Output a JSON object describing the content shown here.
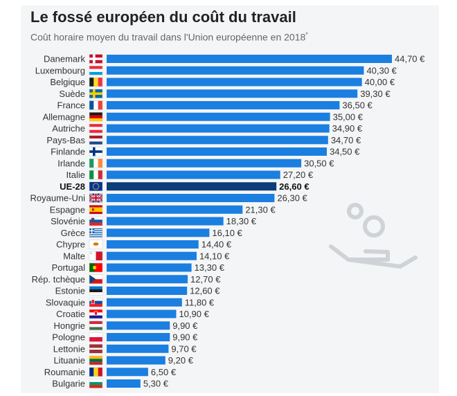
{
  "title": "Le fossé européen du coût du travail",
  "subtitle": "Coût horaire moyen du travail dans l'Union européenne en 2018",
  "subtitle_mark": "*",
  "colors": {
    "bar": "#1a7fe0",
    "bar_highlight": "#0d3c7a",
    "decor": "#cfd3d8"
  },
  "decor_icon": "hand-with-person-icon",
  "chart_data": {
    "type": "bar",
    "orientation": "horizontal",
    "title": "Le fossé européen du coût du travail",
    "subtitle": "Coût horaire moyen du travail dans l'Union européenne en 2018",
    "unit": "€",
    "xlim": [
      0,
      44.7
    ],
    "grid": false,
    "highlight": "UE-28",
    "categories": [
      "Danemark",
      "Luxembourg",
      "Belgique",
      "Suède",
      "France",
      "Allemagne",
      "Autriche",
      "Pays-Bas",
      "Finlande",
      "Irlande",
      "Italie",
      "UE-28",
      "Royaume-Uni",
      "Espagne",
      "Slovénie",
      "Grèce",
      "Chypre",
      "Malte",
      "Portugal",
      "Rép. tchèque",
      "Estonie",
      "Slovaquie",
      "Croatie",
      "Hongrie",
      "Pologne",
      "Lettonie",
      "Lituanie",
      "Roumanie",
      "Bulgarie"
    ],
    "values": [
      44.7,
      40.3,
      40.0,
      39.3,
      36.5,
      35.0,
      34.9,
      34.7,
      34.5,
      30.5,
      27.2,
      26.6,
      26.3,
      21.3,
      18.3,
      16.1,
      14.4,
      14.1,
      13.3,
      12.7,
      12.6,
      11.8,
      10.9,
      9.9,
      9.9,
      9.7,
      9.2,
      6.5,
      5.3
    ],
    "value_labels": [
      "44,70 €",
      "40,30 €",
      "40,00 €",
      "39,30 €",
      "36,50 €",
      "35,00 €",
      "34,90 €",
      "34,70 €",
      "34,50 €",
      "30,50 €",
      "27,20 €",
      "26,60 €",
      "26,30 €",
      "21,30 €",
      "18,30 €",
      "16,10 €",
      "14,40 €",
      "14,10 €",
      "13,30 €",
      "12,70 €",
      "12,60 €",
      "11,80 €",
      "10,90 €",
      "9,90 €",
      "9,90 €",
      "9,70 €",
      "9,20 €",
      "6,50 €",
      "5,30 €"
    ],
    "flags": [
      "denmark-flag-icon",
      "luxembourg-flag-icon",
      "belgium-flag-icon",
      "sweden-flag-icon",
      "france-flag-icon",
      "germany-flag-icon",
      "austria-flag-icon",
      "netherlands-flag-icon",
      "finland-flag-icon",
      "ireland-flag-icon",
      "italy-flag-icon",
      "eu-flag-icon",
      "uk-flag-icon",
      "spain-flag-icon",
      "slovenia-flag-icon",
      "greece-flag-icon",
      "cyprus-flag-icon",
      "malta-flag-icon",
      "portugal-flag-icon",
      "czech-flag-icon",
      "estonia-flag-icon",
      "slovakia-flag-icon",
      "croatia-flag-icon",
      "hungary-flag-icon",
      "poland-flag-icon",
      "latvia-flag-icon",
      "lithuania-flag-icon",
      "romania-flag-icon",
      "bulgaria-flag-icon"
    ]
  }
}
